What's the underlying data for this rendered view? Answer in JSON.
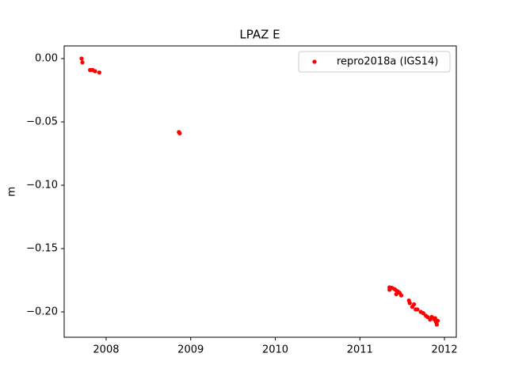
{
  "chart_data": {
    "type": "scatter",
    "title": "LPAZ E",
    "ylabel": "m",
    "series": [
      {
        "name": "repro2018a (IGS14)",
        "color": "#ff0000",
        "x": [
          2007.71,
          2007.72,
          2007.81,
          2007.84,
          2007.87,
          2007.92,
          2008.86,
          2008.87,
          2011.35,
          2011.35,
          2011.38,
          2011.41,
          2011.43,
          2011.43,
          2011.45,
          2011.47,
          2011.49,
          2011.58,
          2011.59,
          2011.62,
          2011.64,
          2011.66,
          2011.68,
          2011.72,
          2011.75,
          2011.78,
          2011.8,
          2011.83,
          2011.85,
          2011.88,
          2011.89,
          2011.9,
          2011.91,
          2011.92
        ],
        "values": [
          0.0,
          -0.003,
          -0.009,
          -0.009,
          -0.01,
          -0.011,
          -0.058,
          -0.059,
          -0.1806,
          -0.1825,
          -0.181,
          -0.182,
          -0.183,
          -0.186,
          -0.184,
          -0.185,
          -0.187,
          -0.191,
          -0.193,
          -0.196,
          -0.194,
          -0.198,
          -0.198,
          -0.2,
          -0.201,
          -0.203,
          -0.204,
          -0.206,
          -0.204,
          -0.206,
          -0.205,
          -0.208,
          -0.21,
          -0.207
        ]
      }
    ],
    "xlim": [
      2007.504,
      2012.14
    ],
    "xticks": [
      2008,
      2009,
      2010,
      2011,
      2012
    ],
    "ylim": [
      -0.22,
      0.01
    ],
    "yticks": [
      {
        "value": 0,
        "label": "0.00"
      },
      {
        "value": -0.05,
        "label": "−0.05"
      },
      {
        "value": -0.1,
        "label": "−0.10"
      },
      {
        "value": -0.15,
        "label": "−0.15"
      },
      {
        "value": -0.2,
        "label": "−0.20"
      }
    ],
    "legend": "upper right"
  }
}
